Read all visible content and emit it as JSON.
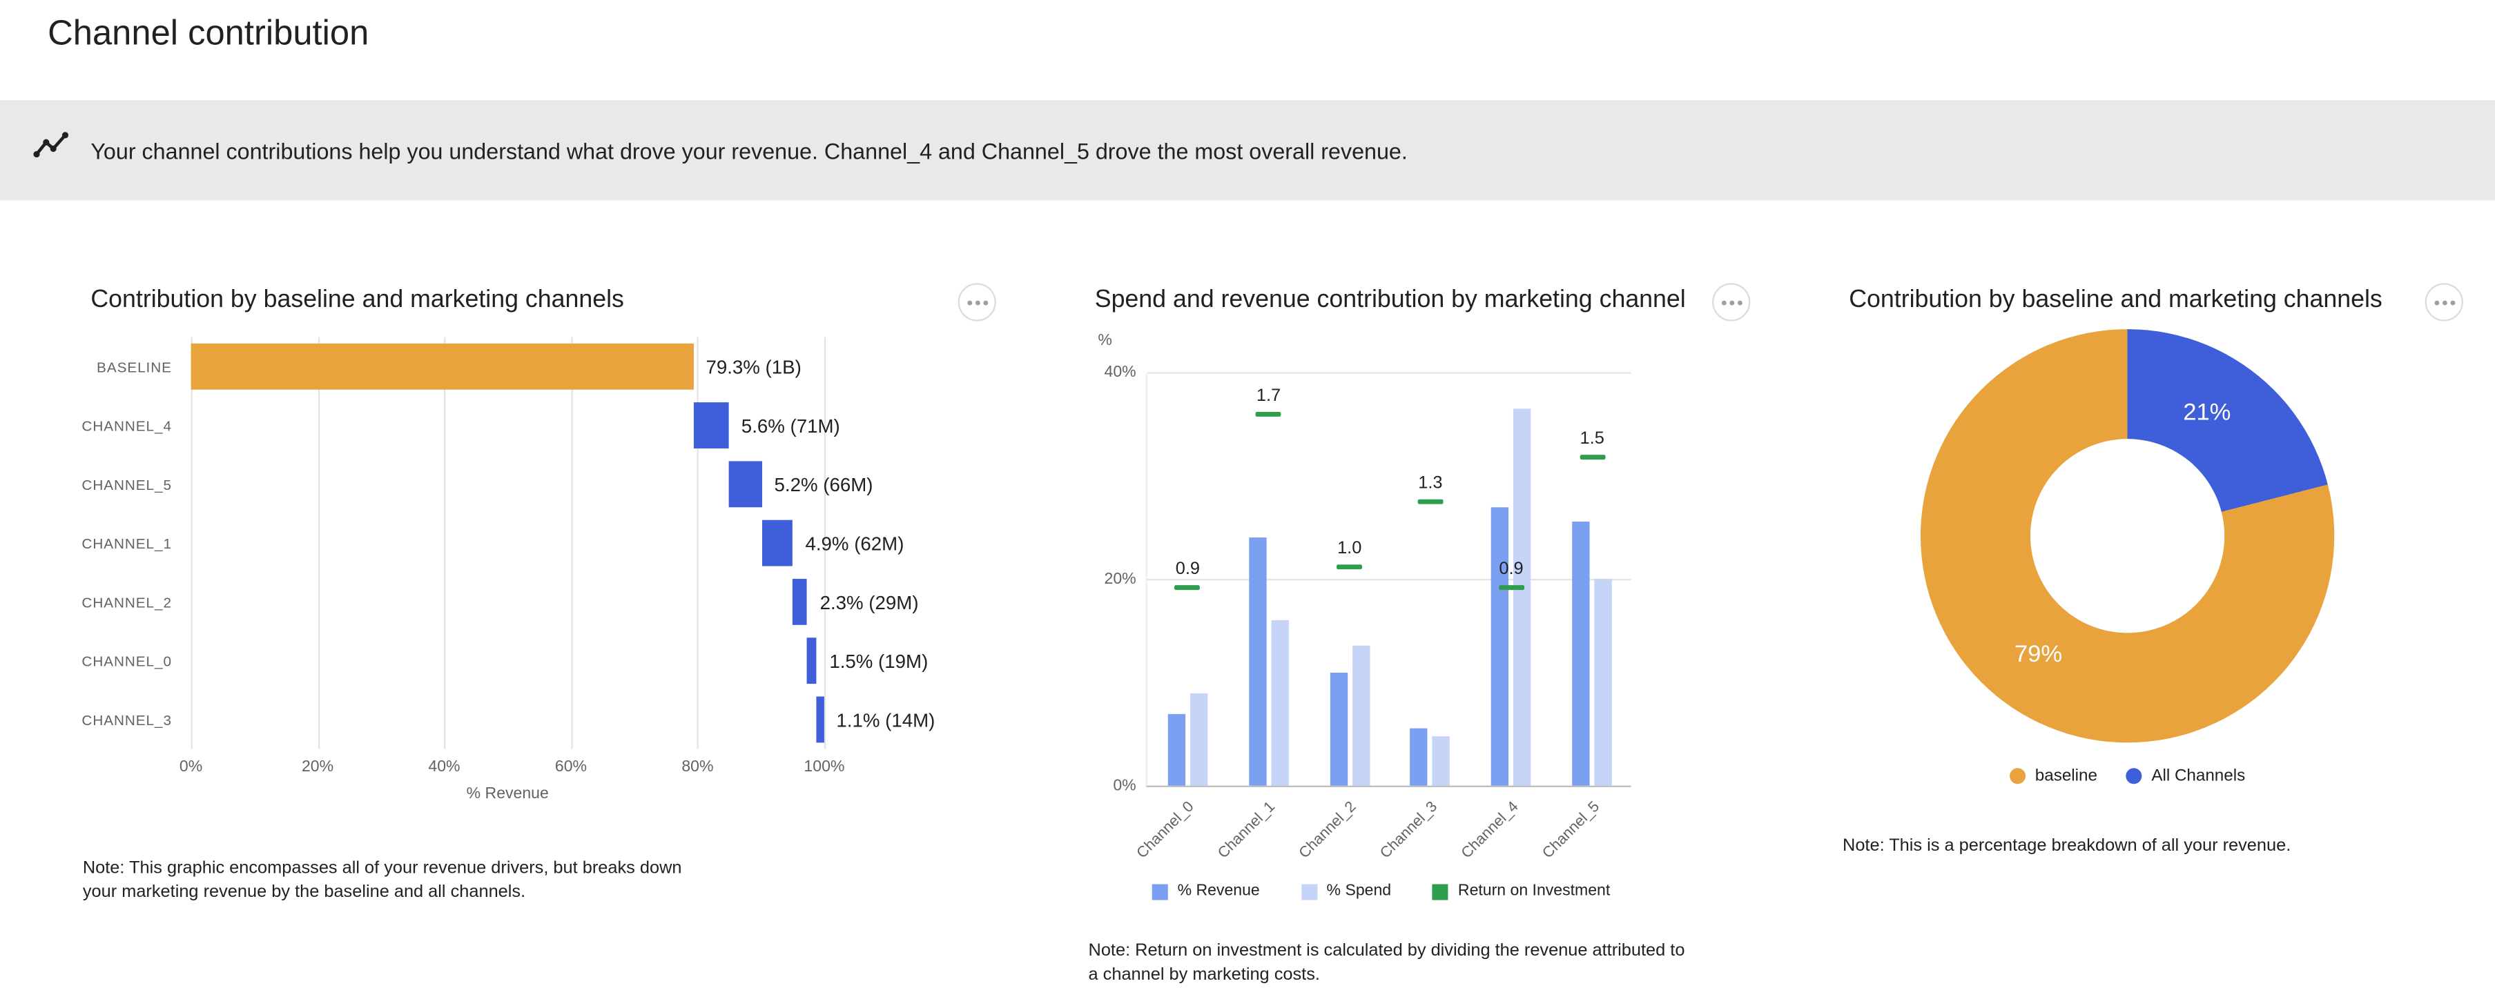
{
  "page": {
    "title": "Channel contribution"
  },
  "banner": {
    "text": "Your channel contributions help you understand what drove your revenue. Channel_4 and Channel_5 drove the most overall revenue."
  },
  "colors": {
    "baseline": "#E8A33D",
    "channel": "#3E5FD9",
    "revenue": "#7BA0F2",
    "spend": "#C5D4F7",
    "roi": "#2E9E4E",
    "banner_bg": "#E9E9E9"
  },
  "chart_data": [
    {
      "type": "bar",
      "variant": "horizontal-waterfall",
      "title": "Contribution by baseline and marketing channels",
      "xlabel": "% Revenue",
      "xlim": [
        0,
        100
      ],
      "x_ticks": [
        "0%",
        "20%",
        "40%",
        "60%",
        "80%",
        "100%"
      ],
      "rows": [
        {
          "label": "BASELINE",
          "value": 79.3,
          "value_label": "79.3% (1B)",
          "series": "baseline"
        },
        {
          "label": "CHANNEL_4",
          "value": 5.6,
          "value_label": "5.6% (71M)",
          "series": "channel"
        },
        {
          "label": "CHANNEL_5",
          "value": 5.2,
          "value_label": "5.2% (66M)",
          "series": "channel"
        },
        {
          "label": "CHANNEL_1",
          "value": 4.9,
          "value_label": "4.9% (62M)",
          "series": "channel"
        },
        {
          "label": "CHANNEL_2",
          "value": 2.3,
          "value_label": "2.3% (29M)",
          "series": "channel"
        },
        {
          "label": "CHANNEL_0",
          "value": 1.5,
          "value_label": "1.5% (19M)",
          "series": "channel"
        },
        {
          "label": "CHANNEL_3",
          "value": 1.1,
          "value_label": "1.1% (14M)",
          "series": "channel"
        }
      ],
      "note": "Note: This graphic encompasses all of your revenue drivers, but breaks down your marketing revenue by the baseline and all channels."
    },
    {
      "type": "bar",
      "variant": "grouped-with-roi-markers",
      "title": "Spend and revenue contribution by marketing channel",
      "ylabel": "%",
      "ylim": [
        0,
        40
      ],
      "y_ticks": [
        "0%",
        "20%",
        "40%"
      ],
      "categories": [
        "Channel_0",
        "Channel_1",
        "Channel_2",
        "Channel_3",
        "Channel_4",
        "Channel_5"
      ],
      "series": [
        {
          "name": "% Revenue",
          "values": [
            7,
            24,
            11,
            5.5,
            27,
            25.5
          ]
        },
        {
          "name": "% Spend",
          "values": [
            9,
            16,
            13.5,
            4.8,
            36.5,
            20
          ]
        },
        {
          "name": "Return on Investment",
          "values": [
            0.9,
            1.7,
            1.0,
            1.3,
            0.9,
            1.5
          ],
          "labels": [
            "0.9",
            "1.7",
            "1.0",
            "1.3",
            "0.9",
            "1.5"
          ]
        }
      ],
      "legend": [
        "% Revenue",
        "% Spend",
        "Return on Investment"
      ],
      "roi_axis_unit_pct": 21,
      "note": "Note: Return on investment is calculated by dividing the revenue attributed to a channel by marketing costs."
    },
    {
      "type": "pie",
      "variant": "donut",
      "title": "Contribution by baseline and marketing channels",
      "slices": [
        {
          "label": "All Channels",
          "value": 21,
          "display": "21%"
        },
        {
          "label": "baseline",
          "value": 79,
          "display": "79%"
        }
      ],
      "legend": [
        "baseline",
        "All Channels"
      ],
      "note": "Note: This is a percentage breakdown of all your revenue."
    }
  ]
}
